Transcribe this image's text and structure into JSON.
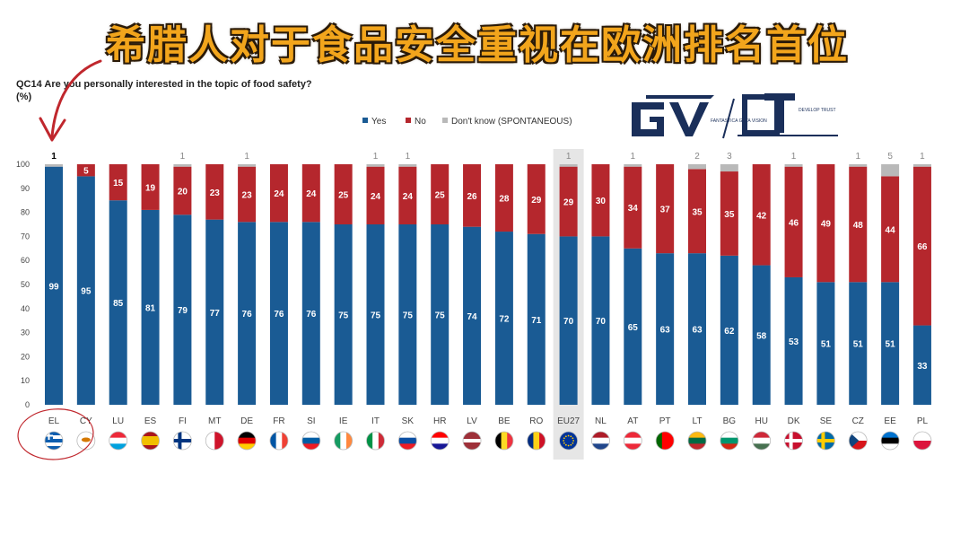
{
  "headline": "希腊人对于食品安全重视在欧洲排名首位",
  "question": {
    "line1": "QC14 Are you personally interested in the topic of food safety?",
    "line2": "(%)"
  },
  "logo": {
    "brand_left": "FANTASTICA GAYA VISION",
    "brand_right": "DEVELOP TRUST"
  },
  "colors": {
    "yes": "#1a5b94",
    "no": "#b5272d",
    "dont_know": "#b9b9b9",
    "highlight": "#e6e6e6",
    "circle": "#c0272d"
  },
  "chart_data": {
    "type": "bar",
    "stacked": true,
    "categories": [
      "EL",
      "CY",
      "LU",
      "ES",
      "FI",
      "MT",
      "DE",
      "FR",
      "SI",
      "IE",
      "IT",
      "SK",
      "HR",
      "LV",
      "BE",
      "RO",
      "EU27",
      "NL",
      "AT",
      "PT",
      "LT",
      "BG",
      "HU",
      "DK",
      "SE",
      "CZ",
      "EE",
      "PL"
    ],
    "series": [
      {
        "name": "Yes",
        "values": [
          99,
          95,
          85,
          81,
          79,
          77,
          76,
          76,
          76,
          75,
          75,
          75,
          75,
          74,
          72,
          71,
          70,
          70,
          65,
          63,
          63,
          62,
          58,
          53,
          51,
          51,
          51,
          33
        ]
      },
      {
        "name": "No",
        "values": [
          0,
          5,
          15,
          19,
          20,
          23,
          23,
          24,
          24,
          25,
          24,
          24,
          25,
          26,
          28,
          29,
          29,
          30,
          34,
          37,
          35,
          35,
          42,
          46,
          49,
          48,
          44,
          66
        ]
      },
      {
        "name": "Don't know (SPONTANEOUS)",
        "values": [
          1,
          0,
          0,
          0,
          1,
          0,
          1,
          0,
          0,
          0,
          1,
          1,
          0,
          0,
          0,
          0,
          1,
          0,
          1,
          0,
          2,
          3,
          0,
          1,
          0,
          1,
          5,
          1
        ]
      }
    ],
    "yes_labels": [
      "99",
      "95",
      "85",
      "81",
      "79",
      "77",
      "76",
      "76",
      "76",
      "75",
      "75",
      "75",
      "75",
      "74",
      "72",
      "71",
      "70",
      "70",
      "65",
      "63",
      "63",
      "62",
      "58",
      "53",
      "51",
      "51",
      "51",
      "33"
    ],
    "no_labels": [
      "",
      "5",
      "15",
      "19",
      "20",
      "23",
      "23",
      "24",
      "24",
      "25",
      "24",
      "24",
      "25",
      "26",
      "28",
      "29",
      "29",
      "30",
      "34",
      "37",
      "35",
      "35",
      "42",
      "46",
      "49",
      "48",
      "44",
      "66"
    ],
    "dk_labels": [
      "1",
      "",
      "",
      "",
      "1",
      "",
      "1",
      "",
      "",
      "",
      "1",
      "1",
      "",
      "",
      "",
      "",
      "1",
      "",
      "1",
      "",
      "2",
      "3",
      "",
      "1",
      "",
      "1",
      "5",
      "1"
    ],
    "y_ticks": [
      "0",
      "10",
      "20",
      "30",
      "40",
      "50",
      "60",
      "70",
      "80",
      "90",
      "100"
    ],
    "ylim": [
      0,
      100
    ],
    "legend_position": "top-center",
    "highlight_category": "EU27",
    "circled_category": "EL"
  },
  "flags": [
    {
      "name": "greece-flag",
      "stripes": [
        "#0d5eaf",
        "#ffffff",
        "#0d5eaf",
        "#ffffff",
        "#0d5eaf"
      ],
      "dir": "h"
    },
    {
      "name": "cyprus-flag",
      "stripes": [
        "#ffffff",
        "#ffffff",
        "#ffffff"
      ],
      "dir": "h",
      "emblem": "#d57800"
    },
    {
      "name": "luxembourg-flag",
      "stripes": [
        "#ed2939",
        "#ffffff",
        "#00a1de"
      ],
      "dir": "h"
    },
    {
      "name": "spain-flag",
      "stripes": [
        "#aa151b",
        "#f1bf00",
        "#f1bf00",
        "#aa151b"
      ],
      "dir": "h"
    },
    {
      "name": "finland-flag",
      "stripes": [
        "#ffffff",
        "#ffffff",
        "#ffffff"
      ],
      "dir": "h",
      "cross": "#003580"
    },
    {
      "name": "malta-flag",
      "stripes": [
        "#ffffff",
        "#cf142b"
      ],
      "dir": "v"
    },
    {
      "name": "germany-flag",
      "stripes": [
        "#000000",
        "#dd0000",
        "#ffce00"
      ],
      "dir": "h"
    },
    {
      "name": "france-flag",
      "stripes": [
        "#0055a4",
        "#ffffff",
        "#ef4135"
      ],
      "dir": "v"
    },
    {
      "name": "slovenia-flag",
      "stripes": [
        "#ffffff",
        "#005da4",
        "#ed1c24"
      ],
      "dir": "h"
    },
    {
      "name": "ireland-flag",
      "stripes": [
        "#169b62",
        "#ffffff",
        "#ff883e"
      ],
      "dir": "v"
    },
    {
      "name": "italy-flag",
      "stripes": [
        "#009246",
        "#ffffff",
        "#ce2b37"
      ],
      "dir": "v"
    },
    {
      "name": "slovakia-flag",
      "stripes": [
        "#ffffff",
        "#0b4ea2",
        "#ee1c25"
      ],
      "dir": "h"
    },
    {
      "name": "croatia-flag",
      "stripes": [
        "#ff0000",
        "#ffffff",
        "#171796"
      ],
      "dir": "h"
    },
    {
      "name": "latvia-flag",
      "stripes": [
        "#9e3039",
        "#9e3039",
        "#ffffff",
        "#9e3039",
        "#9e3039"
      ],
      "dir": "h"
    },
    {
      "name": "belgium-flag",
      "stripes": [
        "#000000",
        "#fdda24",
        "#ef3340"
      ],
      "dir": "v"
    },
    {
      "name": "romania-flag",
      "stripes": [
        "#002b7f",
        "#fcd116",
        "#ce1126"
      ],
      "dir": "v"
    },
    {
      "name": "eu-flag",
      "stripes": [
        "#003399"
      ],
      "dir": "h",
      "stars": "#ffcc00"
    },
    {
      "name": "netherlands-flag",
      "stripes": [
        "#ae1c28",
        "#ffffff",
        "#21468b"
      ],
      "dir": "h"
    },
    {
      "name": "austria-flag",
      "stripes": [
        "#ed2939",
        "#ffffff",
        "#ed2939"
      ],
      "dir": "h"
    },
    {
      "name": "portugal-flag",
      "stripes": [
        "#006600",
        "#ff0000",
        "#ff0000"
      ],
      "dir": "v"
    },
    {
      "name": "lithuania-flag",
      "stripes": [
        "#fdb913",
        "#006a44",
        "#c1272d"
      ],
      "dir": "h"
    },
    {
      "name": "bulgaria-flag",
      "stripes": [
        "#ffffff",
        "#00966e",
        "#d62612"
      ],
      "dir": "h"
    },
    {
      "name": "hungary-flag",
      "stripes": [
        "#ce2939",
        "#ffffff",
        "#477050"
      ],
      "dir": "h"
    },
    {
      "name": "denmark-flag",
      "stripes": [
        "#c8102e",
        "#c8102e",
        "#c8102e"
      ],
      "dir": "h",
      "cross": "#ffffff"
    },
    {
      "name": "sweden-flag",
      "stripes": [
        "#006aa7",
        "#006aa7",
        "#006aa7"
      ],
      "dir": "h",
      "cross": "#fecc00"
    },
    {
      "name": "czechia-flag",
      "stripes": [
        "#ffffff",
        "#d7141a"
      ],
      "dir": "h",
      "triangle": "#11457e"
    },
    {
      "name": "estonia-flag",
      "stripes": [
        "#0072ce",
        "#000000",
        "#ffffff"
      ],
      "dir": "h"
    },
    {
      "name": "poland-flag",
      "stripes": [
        "#ffffff",
        "#dc143c"
      ],
      "dir": "h"
    }
  ]
}
